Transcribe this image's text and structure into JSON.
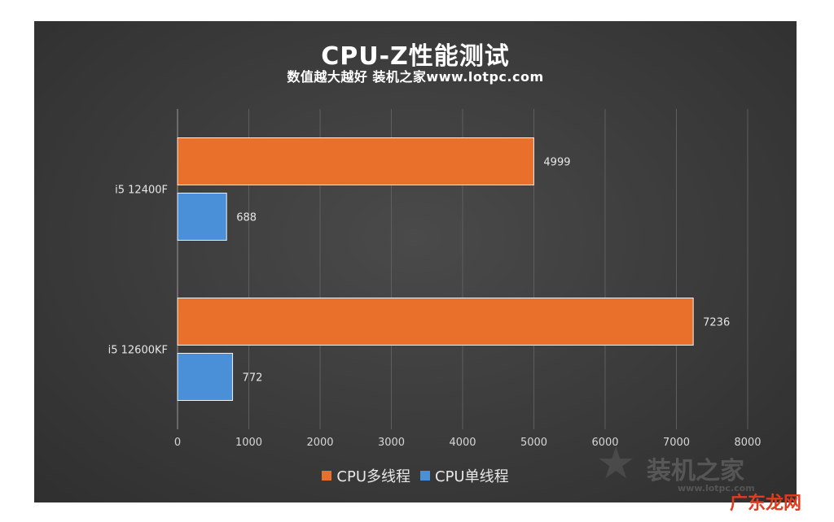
{
  "chart_data": {
    "type": "bar",
    "orientation": "horizontal",
    "title": "CPU-Z性能测试",
    "subtitle": "数值越大越好 装机之家www.lotpc.com",
    "categories": [
      "i5 12400F",
      "i5 12600KF"
    ],
    "series": [
      {
        "name": "CPU多线程",
        "values": [
          4999,
          7236
        ],
        "color": "#e8702a"
      },
      {
        "name": "CPU单线程",
        "values": [
          688,
          772
        ],
        "color": "#4a90d9"
      }
    ],
    "xlim": [
      0,
      8000
    ],
    "x_ticks": [
      "0",
      "1000",
      "2000",
      "3000",
      "4000",
      "5000",
      "6000",
      "7000",
      "8000"
    ],
    "grid": "vertical",
    "legend_position": "bottom",
    "background": "#3b3b3b"
  },
  "watermark": {
    "text": "装机之家",
    "url": "www.lotpc.com"
  },
  "corner_mark": "广东龙网"
}
